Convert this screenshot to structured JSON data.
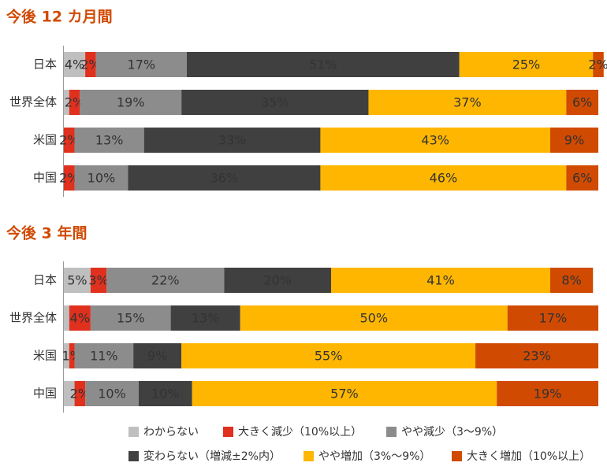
{
  "legend": [
    {
      "name": "わからない",
      "color": "#bfbfbf"
    },
    {
      "name": "大きく減少（10%以上）",
      "color": "#e0301e"
    },
    {
      "name": "やや減少（3～9%）",
      "color": "#8c8c8c"
    },
    {
      "name": "変わらない（増減±2%内）",
      "color": "#404040"
    },
    {
      "name": "やや増加（3%～9%）",
      "color": "#ffb600"
    },
    {
      "name": "大きく増加（10%以上）",
      "color": "#d04a02"
    }
  ],
  "chart_data": [
    {
      "type": "bar",
      "stacked": true,
      "orientation": "horizontal",
      "title": "今後 12 カ月間",
      "categories": [
        "日本",
        "世界全体",
        "米国",
        "中国"
      ],
      "series": [
        {
          "values": [
            4,
            1,
            0,
            0
          ],
          "value_labels": [
            "4%",
            null,
            null,
            null
          ]
        },
        {
          "values": [
            2,
            2,
            2,
            2
          ],
          "value_labels": [
            "2%",
            "2%",
            "2%",
            "2%"
          ]
        },
        {
          "values": [
            17,
            19,
            13,
            10
          ],
          "value_labels": [
            "17%",
            "19%",
            "13%",
            "10%"
          ]
        },
        {
          "values": [
            51,
            35,
            33,
            36
          ],
          "value_labels": [
            "51%",
            "35%",
            "33%",
            "36%"
          ]
        },
        {
          "values": [
            25,
            37,
            43,
            46
          ],
          "value_labels": [
            "25%",
            "37%",
            "43%",
            "46%"
          ]
        },
        {
          "values": [
            2,
            6,
            9,
            6
          ],
          "value_labels": [
            "2%",
            "6%",
            "9%",
            "6%"
          ]
        }
      ]
    },
    {
      "type": "bar",
      "stacked": true,
      "orientation": "horizontal",
      "title": "今後 3 年間",
      "categories": [
        "日本",
        "世界全体",
        "米国",
        "中国"
      ],
      "series": [
        {
          "values": [
            5,
            1,
            1,
            2
          ],
          "value_labels": [
            "5%",
            null,
            null,
            null
          ]
        },
        {
          "values": [
            3,
            4,
            1,
            2
          ],
          "value_labels": [
            "3%",
            "4%",
            "1%",
            "2%"
          ]
        },
        {
          "values": [
            22,
            15,
            11,
            10
          ],
          "value_labels": [
            "22%",
            "15%",
            "11%",
            "10%"
          ]
        },
        {
          "values": [
            20,
            13,
            9,
            10
          ],
          "value_labels": [
            "20%",
            "13%",
            "9%",
            "10%"
          ]
        },
        {
          "values": [
            41,
            50,
            55,
            57
          ],
          "value_labels": [
            "41%",
            "50%",
            "55%",
            "57%"
          ]
        },
        {
          "values": [
            8,
            17,
            23,
            19
          ],
          "value_labels": [
            "8%",
            "17%",
            "23%",
            "19%"
          ]
        }
      ]
    }
  ]
}
